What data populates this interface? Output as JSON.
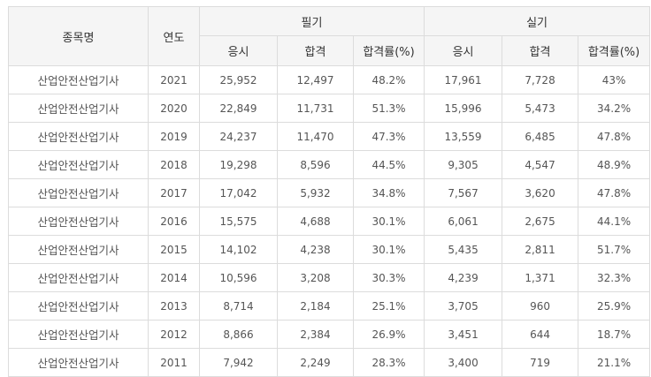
{
  "table": {
    "headers": {
      "subject": "종목명",
      "year": "연도",
      "written": "필기",
      "practical": "실기",
      "sub": [
        "응시",
        "합격",
        "합격률(%)",
        "응시",
        "합격",
        "합격률(%)"
      ]
    },
    "rows": [
      {
        "name": "산업안전산업기사",
        "year": "2021",
        "w_apply": "25,952",
        "w_pass": "12,497",
        "w_rate": "48.2%",
        "p_apply": "17,961",
        "p_pass": "7,728",
        "p_rate": "43%"
      },
      {
        "name": "산업안전산업기사",
        "year": "2020",
        "w_apply": "22,849",
        "w_pass": "11,731",
        "w_rate": "51.3%",
        "p_apply": "15,996",
        "p_pass": "5,473",
        "p_rate": "34.2%"
      },
      {
        "name": "산업안전산업기사",
        "year": "2019",
        "w_apply": "24,237",
        "w_pass": "11,470",
        "w_rate": "47.3%",
        "p_apply": "13,559",
        "p_pass": "6,485",
        "p_rate": "47.8%"
      },
      {
        "name": "산업안전산업기사",
        "year": "2018",
        "w_apply": "19,298",
        "w_pass": "8,596",
        "w_rate": "44.5%",
        "p_apply": "9,305",
        "p_pass": "4,547",
        "p_rate": "48.9%"
      },
      {
        "name": "산업안전산업기사",
        "year": "2017",
        "w_apply": "17,042",
        "w_pass": "5,932",
        "w_rate": "34.8%",
        "p_apply": "7,567",
        "p_pass": "3,620",
        "p_rate": "47.8%"
      },
      {
        "name": "산업안전산업기사",
        "year": "2016",
        "w_apply": "15,575",
        "w_pass": "4,688",
        "w_rate": "30.1%",
        "p_apply": "6,061",
        "p_pass": "2,675",
        "p_rate": "44.1%"
      },
      {
        "name": "산업안전산업기사",
        "year": "2015",
        "w_apply": "14,102",
        "w_pass": "4,238",
        "w_rate": "30.1%",
        "p_apply": "5,435",
        "p_pass": "2,811",
        "p_rate": "51.7%"
      },
      {
        "name": "산업안전산업기사",
        "year": "2014",
        "w_apply": "10,596",
        "w_pass": "3,208",
        "w_rate": "30.3%",
        "p_apply": "4,239",
        "p_pass": "1,371",
        "p_rate": "32.3%"
      },
      {
        "name": "산업안전산업기사",
        "year": "2013",
        "w_apply": "8,714",
        "w_pass": "2,184",
        "w_rate": "25.1%",
        "p_apply": "3,705",
        "p_pass": "960",
        "p_rate": "25.9%"
      },
      {
        "name": "산업안전산업기사",
        "year": "2012",
        "w_apply": "8,866",
        "w_pass": "2,384",
        "w_rate": "26.9%",
        "p_apply": "3,451",
        "p_pass": "644",
        "p_rate": "18.7%"
      },
      {
        "name": "산업안전산업기사",
        "year": "2011",
        "w_apply": "7,942",
        "w_pass": "2,249",
        "w_rate": "28.3%",
        "p_apply": "3,400",
        "p_pass": "719",
        "p_rate": "21.1%"
      }
    ]
  }
}
